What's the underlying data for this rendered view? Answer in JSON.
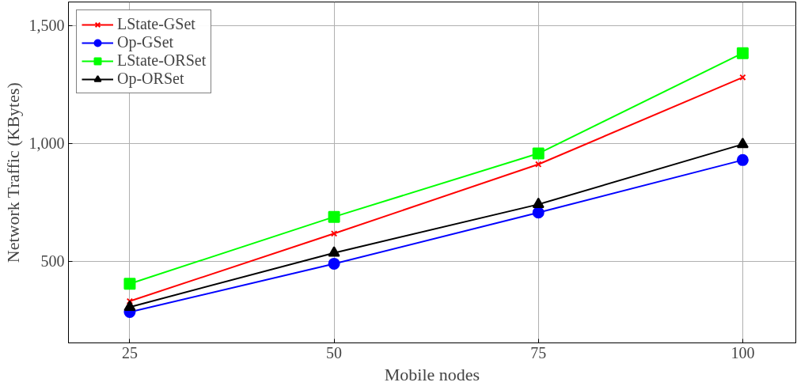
{
  "chart_data": {
    "type": "line",
    "xlabel": "Mobile nodes",
    "ylabel": "Network Traffic (KBytes)",
    "x": [
      25,
      50,
      75,
      100
    ],
    "xlim": [
      17.5,
      106.5
    ],
    "ylim": [
      153,
      1600
    ],
    "xticks": [
      25,
      50,
      75,
      100
    ],
    "yticks": [
      500,
      {
        "value": 1000,
        "label": "1,000"
      },
      {
        "value": 1500,
        "label": "1,500"
      }
    ],
    "grid": true,
    "legend": "top left",
    "series": [
      {
        "name": "LState-GSet",
        "color": "#ff0000",
        "marker": "cross",
        "values": [
          330,
          617,
          911,
          1280
        ]
      },
      {
        "name": "Op-GSet",
        "color": "#0000ff",
        "marker": "circle",
        "values": [
          284,
          489,
          706,
          929
        ]
      },
      {
        "name": "LState-ORSet",
        "color": "#00ff00",
        "marker": "square",
        "values": [
          404,
          688,
          957,
          1383
        ]
      },
      {
        "name": "Op-ORSet",
        "color": "#000000",
        "marker": "triangle",
        "values": [
          305,
          535,
          741,
          996
        ]
      }
    ]
  }
}
